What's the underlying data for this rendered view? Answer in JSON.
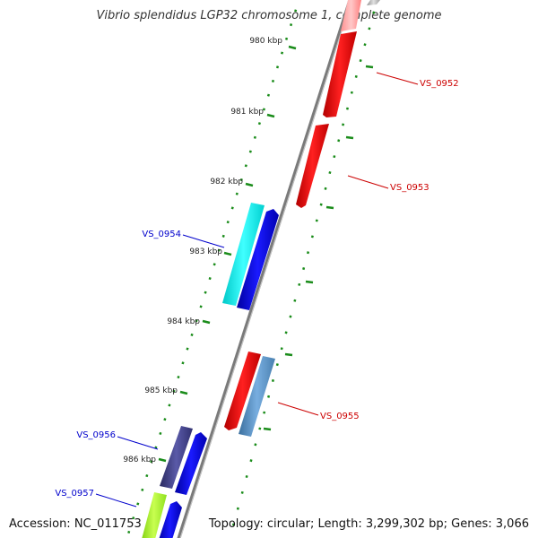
{
  "title": "Vibrio splendidus LGP32 chromosome 1, complete genome",
  "footer": {
    "accession": "Accession: NC_011753",
    "topology": "Topology: circular; Length: 3,299,302 bp; Genes: 3,066"
  },
  "scale_labels": [
    "980 kbp",
    "981 kbp",
    "982 kbp",
    "983 kbp",
    "984 kbp",
    "985 kbp",
    "986 kbp"
  ],
  "genes": [
    {
      "label": "VS_0952",
      "strand": "forward",
      "color": "#ff0000"
    },
    {
      "label": "VS_0953",
      "strand": "forward",
      "color": "#ff0000"
    },
    {
      "label": "VS_0954",
      "strand": "reverse",
      "color": "#0000cc"
    },
    {
      "label": "VS_0955",
      "strand": "forward",
      "color": "#ff0000"
    },
    {
      "label": "VS_0956",
      "strand": "reverse",
      "color": "#0000cc"
    },
    {
      "label": "VS_0957",
      "strand": "reverse",
      "color": "#0000cc"
    }
  ],
  "colors": {
    "forward_label": "#cc0000",
    "reverse_label": "#0000cc",
    "backbone": "#808080",
    "tick": "#1a8c1a"
  }
}
